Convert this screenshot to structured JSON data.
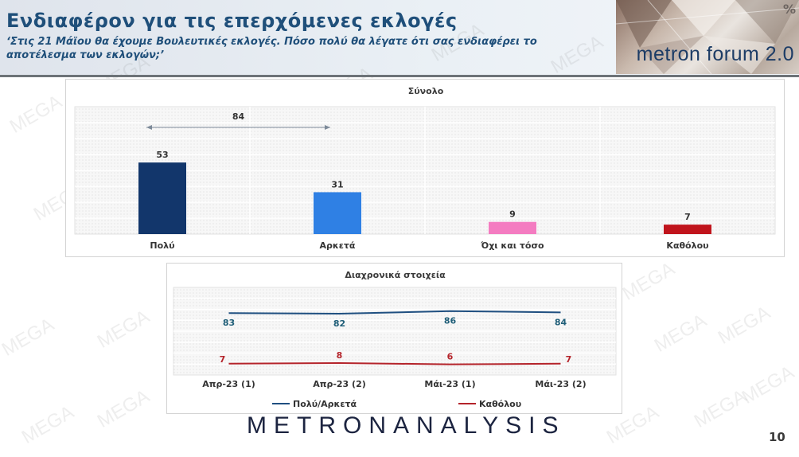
{
  "header": {
    "title": "Ενδιαφέρον για τις επερχόμενες εκλογές",
    "subtitle": "‘Στις 21 Μάϊου θα έχουμε Βουλευτικές εκλογές. Πόσο πολύ θα λέγατε ότι σας ενδιαφέρει το αποτέλεσμα των εκλογών;’",
    "logo_text": "metron forum 2.0",
    "logo_symbol": "%"
  },
  "footer": {
    "brand": "METRONANALYSIS",
    "page_number": "10"
  },
  "watermark_text": "MEGA",
  "colors": {
    "dark_blue": "#12366b",
    "mid_blue": "#2f80e4",
    "pink": "#f47cc1",
    "dark_red": "#c0141c",
    "line_blue": "#1f4f80",
    "line_red": "#b4232a",
    "label_teal": "#1f5e78",
    "label_red": "#b4232a"
  },
  "chart_data": [
    {
      "type": "bar",
      "title": "Σύνολο",
      "categories": [
        "Πολύ",
        "Αρκετά",
        "Όχι και τόσο",
        "Καθόλου"
      ],
      "values": [
        53,
        31,
        9,
        7
      ],
      "colors": [
        "#12366b",
        "#2f80e4",
        "#f47cc1",
        "#c0141c"
      ],
      "ylim": [
        0,
        100
      ],
      "grid": true,
      "annotation": {
        "text": "84",
        "from_category": "Πολύ",
        "to_category": "Αρκετά"
      }
    },
    {
      "type": "line",
      "title": "Διαχρονικά στοιχεία",
      "categories": [
        "Απρ-23 (1)",
        "Απρ-23 (2)",
        "Μάι-23 (1)",
        "Μάι-23 (2)"
      ],
      "series": [
        {
          "name": "Πολύ/Αρκετά",
          "values": [
            83,
            82,
            86,
            84
          ],
          "color": "#1f4f80"
        },
        {
          "name": "Καθόλου",
          "values": [
            7,
            8,
            6,
            7
          ],
          "color": "#b4232a"
        }
      ],
      "ylim": [
        0,
        100
      ],
      "legend": "bottom"
    }
  ]
}
